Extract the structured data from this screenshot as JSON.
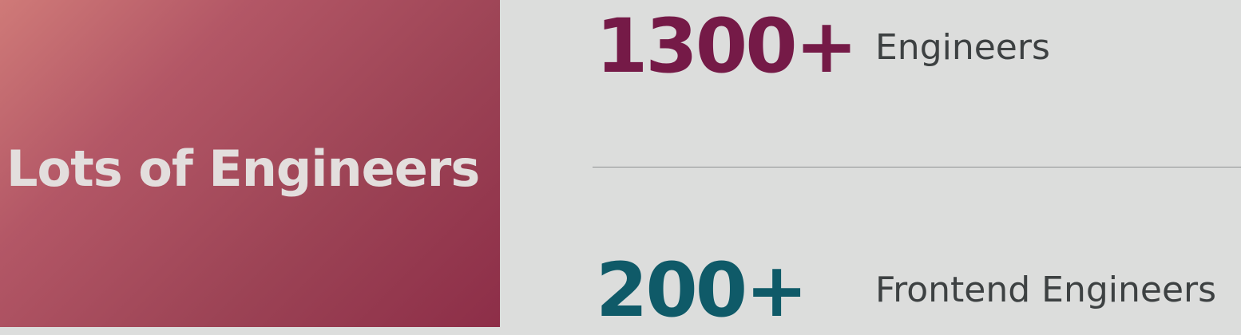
{
  "left": {
    "title": "Lots of Engineers"
  },
  "stats": [
    {
      "value": "1300+",
      "label": "Engineers",
      "color": "#751a47"
    },
    {
      "value": "200+",
      "label": "Frontend Engineers",
      "color": "#0f5a68"
    }
  ],
  "colors": {
    "left_panel_start": "#cf7a78",
    "left_panel_end": "#8d2e48",
    "right_panel": "#dcdddc",
    "title_text": "#e3dedd",
    "label_text": "#3d4142",
    "divider": "#8f9293"
  }
}
